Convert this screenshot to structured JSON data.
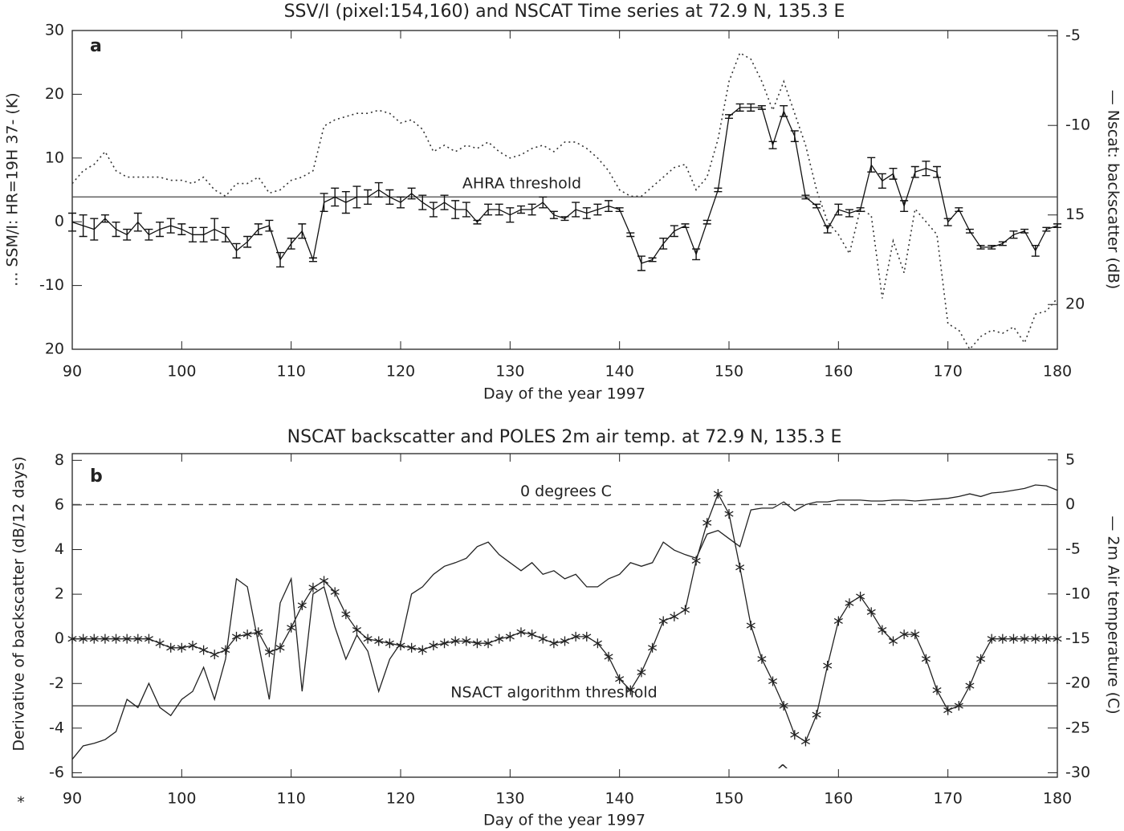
{
  "chart_data": [
    {
      "type": "line",
      "title": "SSV/I (pixel:154,160) and NSCAT Time series at 72.9 N, 135.3 E",
      "panel_label": "a",
      "xlabel": "Day of the year 1997",
      "ylabel": "... SSM/I: HR=19H 37- (K)",
      "y2label": "— Nscat: backscatter (dB)",
      "xlim": [
        90,
        180
      ],
      "xticks": [
        90,
        100,
        110,
        120,
        130,
        140,
        150,
        160,
        170,
        180
      ],
      "ylim": [
        -20,
        30
      ],
      "yticks": [
        30,
        20,
        10,
        0,
        -10,
        {
          "value": -20,
          "label": "20"
        }
      ],
      "y2lim": [
        -22.5,
        -4.7
      ],
      "y2ticks": [
        -5,
        -10,
        {
          "value": -15,
          "label": "15"
        },
        {
          "value": -20,
          "label": "20"
        }
      ],
      "x": [
        90,
        91,
        92,
        93,
        94,
        95,
        96,
        97,
        98,
        99,
        100,
        101,
        102,
        103,
        104,
        105,
        106,
        107,
        108,
        109,
        110,
        111,
        112,
        113,
        114,
        115,
        116,
        117,
        118,
        119,
        120,
        121,
        122,
        123,
        124,
        125,
        126,
        127,
        128,
        129,
        130,
        131,
        132,
        133,
        134,
        135,
        136,
        137,
        138,
        139,
        140,
        141,
        142,
        143,
        144,
        145,
        146,
        147,
        148,
        149,
        150,
        151,
        152,
        153,
        154,
        155,
        156,
        157,
        158,
        159,
        160,
        161,
        162,
        163,
        164,
        165,
        166,
        167,
        168,
        169,
        170,
        171,
        172,
        173,
        174,
        175,
        176,
        177,
        178,
        179,
        180
      ],
      "series": [
        {
          "axis": "y",
          "color": "#333333",
          "style": "dotted",
          "values": [
            6,
            8,
            9,
            11,
            8,
            7,
            7,
            7,
            7,
            6.5,
            6.5,
            6,
            7,
            5,
            4,
            6,
            6,
            7,
            4.5,
            5,
            6.5,
            7,
            8,
            15,
            16,
            16.5,
            17,
            17,
            17.5,
            17,
            15.5,
            16,
            14.5,
            11,
            12,
            11,
            12,
            11.5,
            12.5,
            11,
            10,
            10.5,
            11.5,
            12,
            11,
            12.5,
            12.5,
            11.5,
            10,
            8,
            5,
            4,
            4,
            5.5,
            7,
            8.5,
            9,
            5,
            7,
            13,
            22,
            26.5,
            25.5,
            22,
            17.5,
            22,
            17,
            12,
            5,
            0,
            -2,
            -5,
            2,
            1,
            -12,
            -3,
            -8,
            2,
            0,
            -2,
            -16,
            -17,
            -20,
            -18,
            -17,
            -17.5,
            -16.5,
            -19,
            -14.5,
            -14,
            -12
          ]
        },
        {
          "axis": "y2",
          "color": "#111111",
          "style": "solid",
          "values": [
            -15.4,
            -15.6,
            -15.8,
            -15.2,
            -15.8,
            -16.1,
            -15.4,
            -16.1,
            -15.8,
            -15.6,
            -15.8,
            -16.1,
            -16.1,
            -15.8,
            -16.1,
            -17.0,
            -16.5,
            -15.8,
            -15.6,
            -17.5,
            -16.6,
            -15.9,
            -17.5,
            -14.3,
            -14.0,
            -14.3,
            -14.0,
            -14.0,
            -13.6,
            -14.0,
            -14.3,
            -13.8,
            -14.3,
            -14.7,
            -14.3,
            -14.7,
            -14.7,
            -15.4,
            -14.7,
            -14.7,
            -15.0,
            -14.7,
            -14.7,
            -14.3,
            -15.0,
            -15.2,
            -14.7,
            -14.9,
            -14.7,
            -14.5,
            -14.7,
            -16.1,
            -17.7,
            -17.5,
            -16.6,
            -15.9,
            -15.6,
            -17.2,
            -15.4,
            -13.6,
            -9.5,
            -9.0,
            -9.0,
            -9.0,
            -11.1,
            -9.2,
            -10.6,
            -14.0,
            -14.5,
            -15.8,
            -14.7,
            -14.9,
            -14.7,
            -12.2,
            -13.1,
            -12.7,
            -14.5,
            -12.6,
            -12.4,
            -12.6,
            -15.4,
            -14.7,
            -15.9,
            -16.8,
            -16.8,
            -16.6,
            -16.1,
            -15.9,
            -17.0,
            -15.8,
            -15.6
          ],
          "errors": [
            0.5,
            0.6,
            0.6,
            0.2,
            0.4,
            0.3,
            0.5,
            0.3,
            0.4,
            0.4,
            0.3,
            0.4,
            0.4,
            0.6,
            0.4,
            0.4,
            0.3,
            0.3,
            0.3,
            0.4,
            0.3,
            0.4,
            0.1,
            0.5,
            0.5,
            0.6,
            0.6,
            0.4,
            0.4,
            0.4,
            0.3,
            0.3,
            0.4,
            0.4,
            0.4,
            0.5,
            0.4,
            0.1,
            0.3,
            0.3,
            0.4,
            0.2,
            0.3,
            0.3,
            0.2,
            0.1,
            0.4,
            0.3,
            0.3,
            0.3,
            0.1,
            0.1,
            0.4,
            0.1,
            0.3,
            0.3,
            0.1,
            0.3,
            0.1,
            0.1,
            0.1,
            0.2,
            0.2,
            0.1,
            0.2,
            0.3,
            0.3,
            0.1,
            0.1,
            0.2,
            0.3,
            0.2,
            0.1,
            0.4,
            0.4,
            0.3,
            0.3,
            0.3,
            0.4,
            0.3,
            0.2,
            0.1,
            0.1,
            0.1,
            0.1,
            0.1,
            0.2,
            0.1,
            0.3,
            0.1,
            0.1
          ]
        }
      ],
      "hlines": [
        {
          "value": 3.9,
          "axis": "y",
          "label": "AHRA threshold",
          "style": "solid"
        }
      ]
    },
    {
      "type": "line",
      "title": "NSCAT backscatter and POLES 2m air temp. at 72.9 N, 135.3 E",
      "panel_label": "b",
      "xlabel": "Day of the year 1997",
      "ylabel": "Derivative of backscatter (dB/12 days)",
      "y2label": "— 2m Air temperature (C)",
      "annotations": [
        "^",
        "*"
      ],
      "xlim": [
        90,
        180
      ],
      "xticks": [
        90,
        100,
        110,
        120,
        130,
        140,
        150,
        160,
        170,
        180
      ],
      "ylim": [
        -6.2,
        8.3
      ],
      "yticks": [
        8,
        6,
        4,
        2,
        0,
        -2,
        -4,
        -6
      ],
      "y2lim": [
        -30.5,
        5.7
      ],
      "y2ticks": [
        5,
        0,
        -5,
        -10,
        -15,
        -20,
        -25,
        -30
      ],
      "x": [
        90,
        91,
        92,
        93,
        94,
        95,
        96,
        97,
        98,
        99,
        100,
        101,
        102,
        103,
        104,
        105,
        106,
        107,
        108,
        109,
        110,
        111,
        112,
        113,
        114,
        115,
        116,
        117,
        118,
        119,
        120,
        121,
        122,
        123,
        124,
        125,
        126,
        127,
        128,
        129,
        130,
        131,
        132,
        133,
        134,
        135,
        136,
        137,
        138,
        139,
        140,
        141,
        142,
        143,
        144,
        145,
        146,
        147,
        148,
        149,
        150,
        151,
        152,
        153,
        154,
        155,
        156,
        157,
        158,
        159,
        160,
        161,
        162,
        163,
        164,
        165,
        166,
        167,
        168,
        169,
        170,
        171,
        172,
        173,
        174,
        175,
        176,
        177,
        178,
        179,
        180
      ],
      "series": [
        {
          "axis": "y",
          "color": "#222222",
          "style": "solid",
          "marker": "star",
          "values": [
            0,
            0,
            0,
            0,
            0,
            0,
            0,
            0,
            -0.2,
            -0.4,
            -0.4,
            -0.3,
            -0.5,
            -0.7,
            -0.5,
            0.1,
            0.2,
            0.3,
            -0.6,
            -0.4,
            0.5,
            1.5,
            2.3,
            2.6,
            2.1,
            1.1,
            0.4,
            0,
            -0.1,
            -0.2,
            -0.3,
            -0.4,
            -0.5,
            -0.3,
            -0.2,
            -0.1,
            -0.1,
            -0.2,
            -0.2,
            0,
            0.1,
            0.3,
            0.2,
            0,
            -0.2,
            -0.1,
            0.1,
            0.1,
            -0.2,
            -0.8,
            -1.8,
            -2.3,
            -1.5,
            -0.4,
            0.8,
            1.0,
            1.3,
            3.5,
            5.2,
            6.5,
            5.6,
            3.2,
            0.6,
            -0.9,
            -1.9,
            -3.0,
            -4.3,
            -4.6,
            -3.4,
            -1.2,
            0.8,
            1.6,
            1.9,
            1.2,
            0.4,
            -0.1,
            0.2,
            0.2,
            -0.9,
            -2.3,
            -3.2,
            -3.0,
            -2.1,
            -0.9,
            0,
            0,
            0,
            0,
            0,
            0,
            0
          ]
        },
        {
          "axis": "y2",
          "color": "#222222",
          "style": "solid",
          "values": [
            -28.5,
            -27,
            -26.7,
            -26.3,
            -25.4,
            -21.8,
            -22.7,
            -20,
            -22.7,
            -23.6,
            -21.8,
            -20.9,
            -18.2,
            -21.8,
            -17.3,
            -8.3,
            -9.2,
            -15.5,
            -21.8,
            -11,
            -8.3,
            -20.9,
            -10,
            -9.2,
            -13.7,
            -17.3,
            -14.6,
            -16.4,
            -20.9,
            -17.3,
            -15.5,
            -10,
            -9.2,
            -7.8,
            -6.9,
            -6.5,
            -6,
            -4.7,
            -4.2,
            -5.6,
            -6.5,
            -7.4,
            -6.5,
            -7.8,
            -7.4,
            -8.3,
            -7.8,
            -9.2,
            -9.2,
            -8.3,
            -7.8,
            -6.5,
            -6.9,
            -6.5,
            -4.2,
            -5.1,
            -5.6,
            -6,
            -3.3,
            -2.9,
            -3.8,
            -4.7,
            -0.6,
            -0.4,
            -0.4,
            0.3,
            -0.7,
            0,
            0.3,
            0.3,
            0.5,
            0.5,
            0.5,
            0.4,
            0.4,
            0.5,
            0.5,
            0.4,
            0.5,
            0.6,
            0.7,
            0.9,
            1.2,
            0.9,
            1.3,
            1.4,
            1.6,
            1.8,
            2.2,
            2.1,
            1.6
          ]
        }
      ],
      "hlines": [
        {
          "value": 0,
          "axis": "y2",
          "label": "0 degrees C",
          "style": "dashed"
        },
        {
          "value": -3,
          "axis": "y",
          "label": "NSACT algorithm threshold",
          "style": "solid"
        }
      ]
    }
  ]
}
